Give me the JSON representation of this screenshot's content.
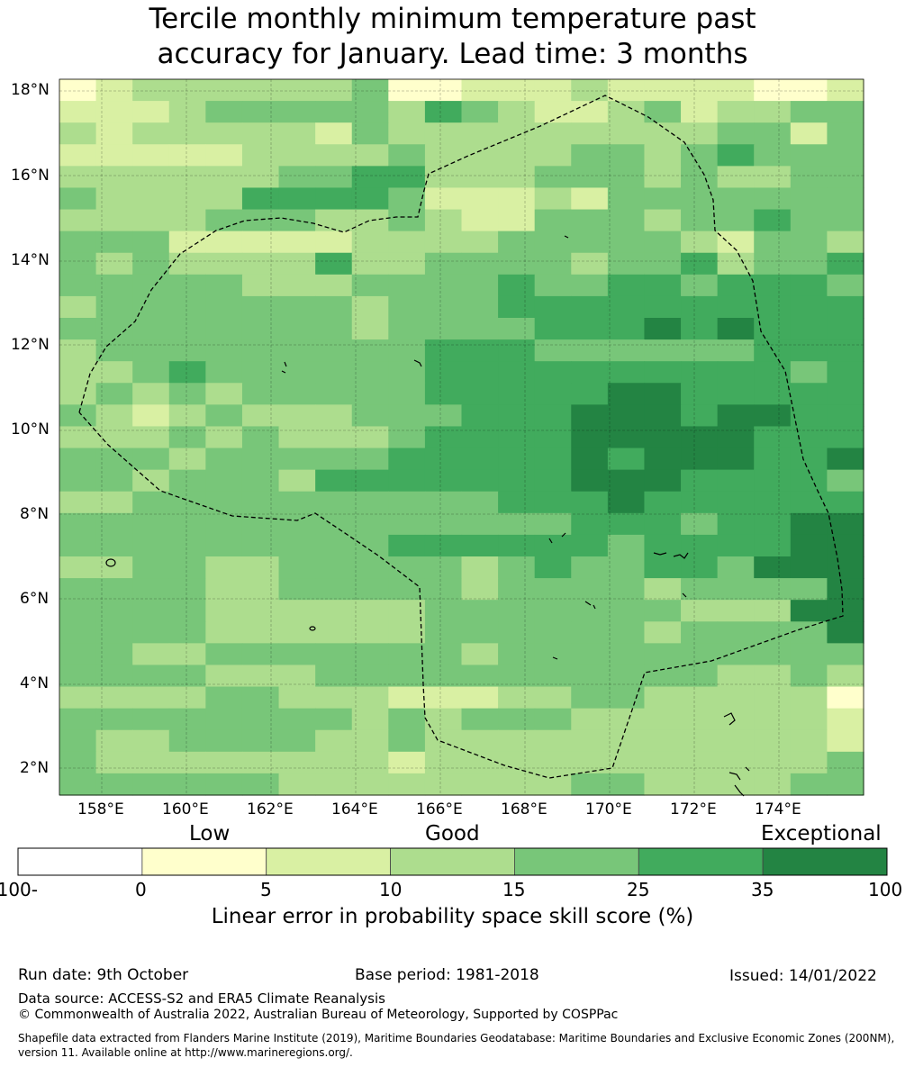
{
  "title_line1": "Tercile monthly minimum temperature past",
  "title_line2": "accuracy for January. Lead time: 3 months",
  "map": {
    "lat_labels": [
      "18°N",
      "16°N",
      "14°N",
      "12°N",
      "10°N",
      "8°N",
      "6°N",
      "4°N",
      "2°N"
    ],
    "lon_labels": [
      "158°E",
      "160°E",
      "162°E",
      "164°E",
      "166°E",
      "168°E",
      "170°E",
      "172°E",
      "174°E"
    ],
    "grid": [
      "2344444451133343333223",
      "3334555554654334534455",
      "4344444354444444445535",
      "3333344445444455456555",
      "4444445566444555454455",
      "5444466665333435555555",
      "4444555445433555455655",
      "5553333344445555543554",
      "5454444644555545564556",
      "5555544455556556656665",
      "4555555545556666666666",
      "5555555545555666767666",
      "4555555555666555555666",
      "4456555555666666666656",
      "4545455555666667766666",
      "5434544455566677767766",
      "4445454445666677777666",
      "5554555556666676777667",
      "5545554666666677766665",
      "4455555555556667666666",
      "5555555555555566656677",
      "5555555556666665666677",
      "4455445555545655665777",
      "5555445555545555455557",
      "5555444444555555544477",
      "5555444444555555455557",
      "5544555555545555555555",
      "5555444555555555554454",
      "4444554443334455444442",
      "5555555545455544444443",
      "5445555445444444444443",
      "5444444443444444444445",
      "5555554444444455444455"
    ],
    "colors": {
      "1": "#ffffcc",
      "2": "#ffffcc",
      "3": "#d9f0a3",
      "4": "#addd8e",
      "5": "#78c679",
      "6": "#41ab5d",
      "7": "#238443"
    }
  },
  "colorbar": {
    "categories": [
      "Low",
      "Good",
      "Exceptional"
    ],
    "ticks": [
      "-100",
      "0",
      "5",
      "10",
      "15",
      "25",
      "35",
      "100"
    ],
    "colors": [
      "#ffffff",
      "#ffffcc",
      "#d9f0a3",
      "#addd8e",
      "#78c679",
      "#41ab5d",
      "#238443"
    ],
    "label": "Linear error in probability space skill score (%)"
  },
  "footer": {
    "run_date": "Run date: 9th October",
    "base_period": "Base period: 1981-2018",
    "issued": "Issued: 14/01/2022",
    "data_source": "Data source: ACCESS-S2 and ERA5 Climate Reanalysis",
    "copyright": "© Commonwealth of Australia 2022, Australian Bureau of Meteorology, Supported by COSPPac",
    "shapefile_line1": "Shapefile data extracted from Flanders Marine Institute (2019), Maritime Boundaries Geodatabase: Maritime Boundaries and Exclusive Economic Zones (200NM),",
    "shapefile_line2": "version 11. Available online at http://www.marineregions.org/."
  }
}
